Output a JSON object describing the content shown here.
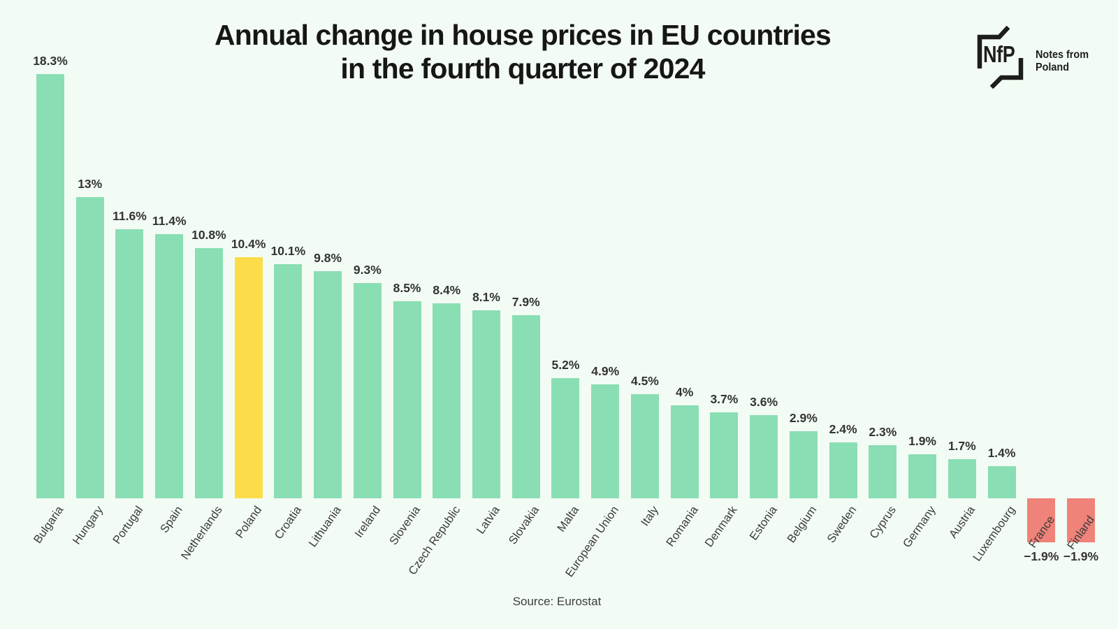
{
  "background": "#F3FCF4",
  "header": {
    "title_line1": "Annual change in house prices in EU countries",
    "title_line2": "in the fourth quarter of 2024"
  },
  "logo": {
    "monogram": "NfP",
    "wordmark_line1": "Notes from",
    "wordmark_line2": "Poland",
    "color": "#1D1D1B"
  },
  "footer": {
    "source": "Source: Eurostat"
  },
  "chart_data": {
    "type": "bar",
    "title": "Annual change in house prices in EU countries in the fourth quarter of 2024",
    "xlabel": "",
    "ylabel": "",
    "unit": "%",
    "grid": false,
    "legend": "none",
    "ylim": [
      -2.5,
      19.5
    ],
    "categories": [
      "Bulgaria",
      "Hungary",
      "Portugal",
      "Spain",
      "Netherlands",
      "Poland",
      "Croatia",
      "Lithuania",
      "Ireland",
      "Slovenia",
      "Czech Republic",
      "Latvia",
      "Slovakia",
      "Malta",
      "European Union",
      "Italy",
      "Romania",
      "Denmark",
      "Estonia",
      "Belgium",
      "Sweden",
      "Cyprus",
      "Germany",
      "Austria",
      "Luxembourg",
      "France",
      "Finland"
    ],
    "values": [
      18.3,
      13,
      11.6,
      11.4,
      10.8,
      10.4,
      10.1,
      9.8,
      9.3,
      8.5,
      8.4,
      8.1,
      7.9,
      5.2,
      4.9,
      4.5,
      4,
      3.7,
      3.6,
      2.9,
      2.4,
      2.3,
      1.9,
      1.7,
      1.4,
      -1.9,
      -1.9
    ],
    "value_labels": [
      "18.3%",
      "13%",
      "11.6%",
      "11.4%",
      "10.8%",
      "10.4%",
      "10.1%",
      "9.8%",
      "9.3%",
      "8.5%",
      "8.4%",
      "8.1%",
      "7.9%",
      "5.2%",
      "4.9%",
      "4.5%",
      "4%",
      "3.7%",
      "3.6%",
      "2.9%",
      "2.4%",
      "2.3%",
      "1.9%",
      "1.7%",
      "1.4%",
      "−1.9%",
      "−1.9%"
    ],
    "highlight_category": "Poland",
    "source": "Source: Eurostat",
    "colors": {
      "positive": "#89DEB3",
      "negative": "#EF8279",
      "highlight": "#FDDC4A",
      "value_label": "#333333",
      "category_label": "#3A3A3A"
    }
  }
}
